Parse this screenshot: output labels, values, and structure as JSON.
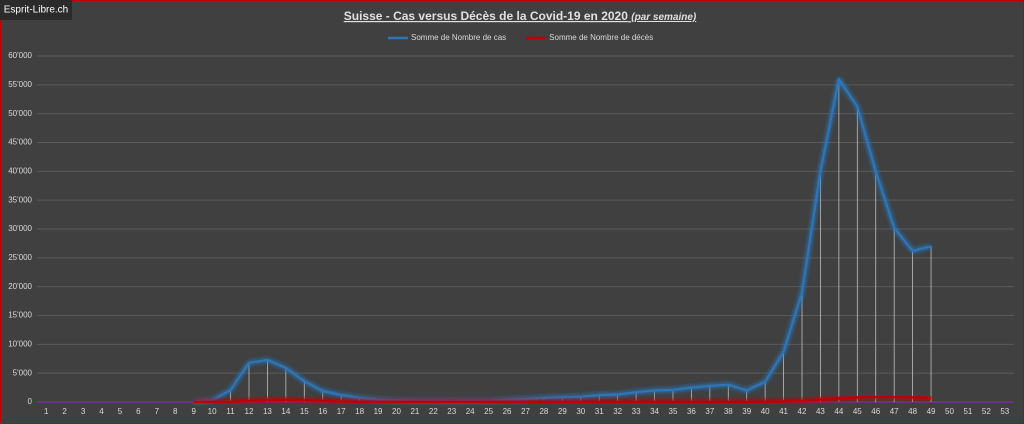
{
  "chart_data": {
    "type": "line",
    "title": "Suisse - Cas versus Décès de la Covid-19 en 2020",
    "subtitle": "(par semaine)",
    "source": "Esprit-Libre.ch",
    "categories": [
      "1",
      "2",
      "3",
      "4",
      "5",
      "6",
      "7",
      "8",
      "9",
      "10",
      "11",
      "12",
      "13",
      "14",
      "15",
      "16",
      "17",
      "18",
      "19",
      "20",
      "21",
      "22",
      "23",
      "24",
      "25",
      "26",
      "27",
      "28",
      "29",
      "30",
      "31",
      "32",
      "33",
      "34",
      "35",
      "36",
      "37",
      "38",
      "39",
      "40",
      "41",
      "42",
      "43",
      "44",
      "45",
      "46",
      "47",
      "48",
      "49",
      "50",
      "51",
      "52",
      "53"
    ],
    "series": [
      {
        "name": "Somme de Nombre de cas",
        "color": "#2e75b6",
        "values": [
          null,
          null,
          null,
          null,
          null,
          null,
          null,
          null,
          0,
          300,
          2100,
          6800,
          7300,
          5900,
          3600,
          1900,
          1200,
          700,
          400,
          300,
          200,
          200,
          150,
          200,
          200,
          400,
          500,
          700,
          800,
          900,
          1200,
          1300,
          1700,
          2000,
          2100,
          2500,
          2800,
          3000,
          2000,
          3500,
          8700,
          19000,
          40000,
          56000,
          51200,
          40000,
          30200,
          26200,
          27000,
          null,
          null,
          null,
          null
        ]
      },
      {
        "name": "Somme de Nombre de décès",
        "color": "#c00000",
        "values": [
          null,
          null,
          null,
          null,
          null,
          null,
          null,
          null,
          0,
          10,
          50,
          200,
          350,
          400,
          300,
          200,
          100,
          60,
          40,
          20,
          15,
          10,
          10,
          10,
          10,
          10,
          10,
          10,
          15,
          20,
          20,
          20,
          25,
          30,
          30,
          30,
          40,
          40,
          40,
          50,
          100,
          200,
          400,
          600,
          800,
          900,
          900,
          800,
          700,
          null,
          null,
          null,
          null
        ]
      }
    ],
    "ylim": [
      0,
      60000
    ],
    "yticks": [
      0,
      {
        "value": 5000,
        "label": "5'000"
      },
      {
        "value": 10000,
        "label": "10'000"
      },
      {
        "value": 15000,
        "label": "15'000"
      },
      {
        "value": 20000,
        "label": "20'000"
      },
      {
        "value": 25000,
        "label": "25'000"
      },
      {
        "value": 30000,
        "label": "30'000"
      },
      {
        "value": 35000,
        "label": "35'000"
      },
      {
        "value": 40000,
        "label": "40'000"
      },
      {
        "value": 45000,
        "label": "45'000"
      },
      {
        "value": 50000,
        "label": "50'000"
      },
      {
        "value": 55000,
        "label": "55'000"
      },
      {
        "value": 60000,
        "label": "60'000"
      }
    ],
    "grid": true,
    "drop_lines": true,
    "legend": "top"
  }
}
